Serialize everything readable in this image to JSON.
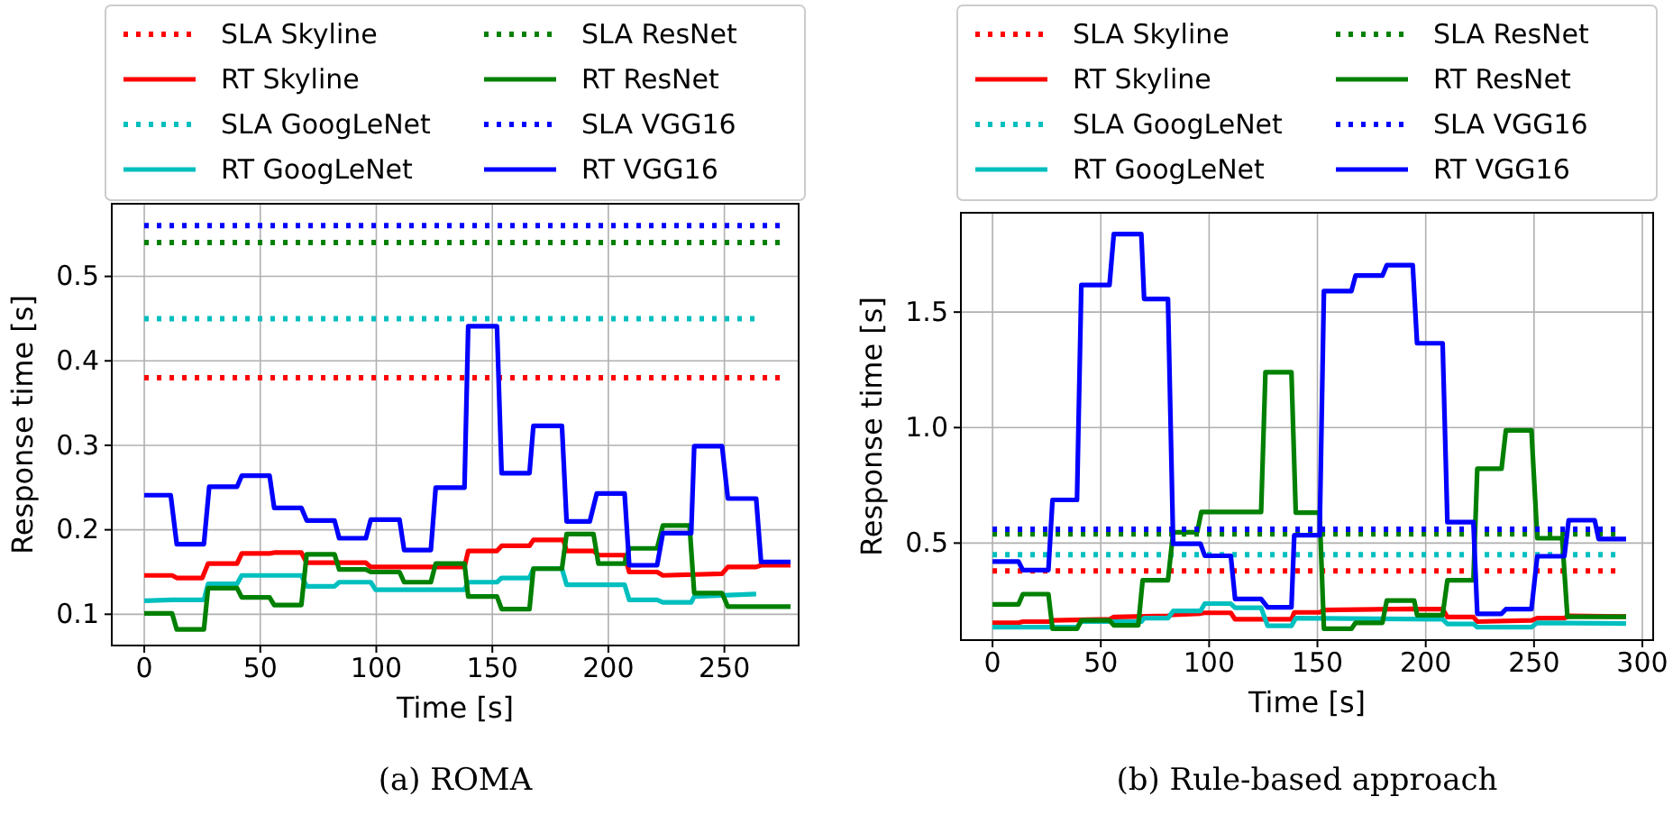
{
  "chart_data": [
    {
      "type": "line",
      "xlabel": "Time [s]",
      "ylabel": "Response time [s]",
      "annotations": [
        "(a) ROMA"
      ],
      "xlim": [
        -14,
        282
      ],
      "ylim": [
        0.063,
        0.586
      ],
      "xticks": [
        0,
        50,
        100,
        150,
        200,
        250
      ],
      "yticks": [
        0.1,
        0.2,
        0.3,
        0.4,
        0.5
      ],
      "grid": true,
      "legend": "top",
      "series": [
        {
          "name": "SLA Skyline",
          "color": "#ff0000",
          "line_style": "dotted",
          "x": [
            0,
            276
          ],
          "values": [
            0.38,
            0.38
          ]
        },
        {
          "name": "RT Skyline",
          "color": "#ff0000",
          "line_style": "solid",
          "x": [
            0,
            12,
            14,
            25,
            27.5,
            40,
            42,
            54,
            56,
            67.7,
            70,
            95.5,
            97.6,
            138,
            139.6,
            152,
            154,
            166,
            167.7,
            180.6,
            182,
            193.6,
            195.7,
            207,
            209,
            221,
            223.5,
            249,
            251.5,
            263.7,
            265.8,
            278.5
          ],
          "values": [
            0.146,
            0.146,
            0.143,
            0.143,
            0.16,
            0.16,
            0.172,
            0.172,
            0.173,
            0.173,
            0.161,
            0.161,
            0.156,
            0.156,
            0.175,
            0.175,
            0.181,
            0.181,
            0.188,
            0.188,
            0.175,
            0.175,
            0.17,
            0.17,
            0.15,
            0.15,
            0.146,
            0.148,
            0.156,
            0.156,
            0.158,
            0.158
          ]
        },
        {
          "name": "SLA GoogLeNet",
          "color": "#00bfbf",
          "line_style": "dotted",
          "x": [
            0,
            263
          ],
          "values": [
            0.45,
            0.45
          ]
        },
        {
          "name": "RT GoogLeNet",
          "color": "#00bfbf",
          "line_style": "solid",
          "x": [
            0,
            12,
            25.7,
            27.5,
            40,
            42,
            67.7,
            70,
            82,
            84,
            97.6,
            99.7,
            138,
            139.6,
            152,
            154,
            166,
            167.7,
            180,
            182,
            207,
            209,
            221,
            223.5,
            235.7,
            237,
            263.7
          ],
          "values": [
            0.116,
            0.117,
            0.117,
            0.136,
            0.136,
            0.146,
            0.146,
            0.133,
            0.133,
            0.138,
            0.138,
            0.129,
            0.129,
            0.138,
            0.138,
            0.143,
            0.143,
            0.154,
            0.154,
            0.135,
            0.135,
            0.117,
            0.117,
            0.114,
            0.114,
            0.121,
            0.124
          ]
        },
        {
          "name": "SLA ResNet",
          "color": "#008000",
          "line_style": "dotted",
          "x": [
            0,
            276
          ],
          "values": [
            0.54,
            0.54
          ]
        },
        {
          "name": "RT ResNet",
          "color": "#008000",
          "line_style": "solid",
          "x": [
            0,
            12,
            14,
            25.7,
            27.5,
            40,
            42,
            54,
            56,
            67.7,
            70,
            82,
            84,
            95.5,
            97.6,
            110,
            112,
            123.5,
            125.6,
            138,
            139.6,
            152,
            154,
            166,
            167.7,
            180,
            182,
            193.6,
            195.7,
            207,
            209,
            221,
            223.5,
            235,
            237,
            249,
            251.5,
            278.5
          ],
          "values": [
            0.101,
            0.101,
            0.082,
            0.082,
            0.131,
            0.131,
            0.12,
            0.12,
            0.111,
            0.111,
            0.171,
            0.171,
            0.153,
            0.153,
            0.15,
            0.15,
            0.138,
            0.138,
            0.16,
            0.16,
            0.121,
            0.121,
            0.106,
            0.106,
            0.154,
            0.154,
            0.195,
            0.195,
            0.16,
            0.16,
            0.178,
            0.178,
            0.205,
            0.205,
            0.125,
            0.125,
            0.109,
            0.109
          ]
        },
        {
          "name": "SLA VGG16",
          "color": "#0000ff",
          "line_style": "dotted",
          "x": [
            0,
            276
          ],
          "values": [
            0.56,
            0.56
          ]
        },
        {
          "name": "RT VGG16",
          "color": "#0000ff",
          "line_style": "solid",
          "x": [
            0,
            11.4,
            14,
            25.7,
            28,
            40,
            42,
            54,
            56,
            67.7,
            70,
            82,
            84,
            95.5,
            97.6,
            110,
            112,
            123.5,
            125.6,
            138,
            139.6,
            152,
            154,
            166,
            167.7,
            180,
            182,
            192,
            195,
            207,
            209,
            221,
            223.5,
            235.7,
            237,
            249,
            251.5,
            263.7,
            265.8,
            278.5
          ],
          "values": [
            0.241,
            0.241,
            0.183,
            0.183,
            0.251,
            0.251,
            0.264,
            0.264,
            0.226,
            0.226,
            0.211,
            0.211,
            0.19,
            0.19,
            0.212,
            0.212,
            0.176,
            0.176,
            0.25,
            0.25,
            0.441,
            0.441,
            0.267,
            0.267,
            0.323,
            0.323,
            0.21,
            0.21,
            0.243,
            0.243,
            0.158,
            0.158,
            0.196,
            0.196,
            0.299,
            0.299,
            0.237,
            0.237,
            0.162,
            0.162
          ]
        }
      ]
    },
    {
      "type": "line",
      "xlabel": "Time [s]",
      "ylabel": "Response time [s]",
      "annotations": [
        "(b) Rule-based approach"
      ],
      "xlim": [
        -14.6,
        305
      ],
      "ylim": [
        0.08,
        1.93
      ],
      "xticks": [
        0,
        50,
        100,
        150,
        200,
        250,
        300
      ],
      "yticks": [
        {
          "value": 0.5,
          "label": "0.5"
        },
        {
          "value": 1,
          "label": "1.0"
        },
        {
          "value": 1.5,
          "label": "1.5"
        }
      ],
      "grid": true,
      "legend": "top",
      "series": [
        {
          "name": "SLA Skyline",
          "color": "#ff0000",
          "line_style": "dotted",
          "x": [
            0,
            290
          ],
          "values": [
            0.38,
            0.38
          ]
        },
        {
          "name": "RT Skyline",
          "color": "#ff0000",
          "line_style": "solid",
          "x": [
            0,
            12,
            14,
            25.8,
            27.7,
            54,
            56,
            81,
            83.4,
            96,
            98,
            110,
            112,
            138,
            139.3,
            151,
            153,
            194,
            196,
            207.8,
            210,
            222,
            223.8,
            248.8,
            251.5,
            264,
            266,
            292.5
          ],
          "values": [
            0.155,
            0.155,
            0.16,
            0.16,
            0.165,
            0.17,
            0.18,
            0.185,
            0.19,
            0.195,
            0.198,
            0.198,
            0.17,
            0.17,
            0.2,
            0.2,
            0.21,
            0.215,
            0.214,
            0.214,
            0.18,
            0.18,
            0.16,
            0.165,
            0.175,
            0.175,
            0.185,
            0.182
          ]
        },
        {
          "name": "SLA GoogLeNet",
          "color": "#00bfbf",
          "line_style": "dotted",
          "x": [
            0,
            290
          ],
          "values": [
            0.45,
            0.45
          ]
        },
        {
          "name": "RT GoogLeNet",
          "color": "#00bfbf",
          "line_style": "solid",
          "x": [
            0,
            39,
            41,
            68.7,
            70,
            81,
            83.4,
            96,
            98,
            110,
            112,
            124,
            127,
            138,
            140,
            207.8,
            210,
            222,
            223.8,
            248.8,
            251.5,
            292.5
          ],
          "values": [
            0.136,
            0.136,
            0.16,
            0.16,
            0.175,
            0.175,
            0.206,
            0.206,
            0.238,
            0.238,
            0.22,
            0.22,
            0.142,
            0.142,
            0.175,
            0.17,
            0.15,
            0.15,
            0.136,
            0.136,
            0.155,
            0.152
          ]
        },
        {
          "name": "SLA ResNet",
          "color": "#008000",
          "line_style": "dotted",
          "x": [
            0,
            290
          ],
          "values": [
            0.54,
            0.54
          ]
        },
        {
          "name": "RT ResNet",
          "color": "#008000",
          "line_style": "solid",
          "x": [
            0,
            12,
            14,
            25.8,
            27.7,
            39,
            41,
            54,
            56,
            67.3,
            69.3,
            81,
            83.4,
            94.5,
            96.4,
            124,
            126,
            138,
            140,
            151,
            153,
            165.7,
            167.6,
            180,
            182,
            194.7,
            196,
            207.8,
            210,
            222,
            223.8,
            235,
            237,
            248.8,
            251.5,
            263,
            265.4,
            292.5
          ],
          "values": [
            0.235,
            0.235,
            0.279,
            0.279,
            0.129,
            0.129,
            0.165,
            0.165,
            0.144,
            0.144,
            0.339,
            0.339,
            0.547,
            0.547,
            0.635,
            0.635,
            1.24,
            1.24,
            0.632,
            0.632,
            0.129,
            0.129,
            0.155,
            0.155,
            0.251,
            0.251,
            0.188,
            0.188,
            0.339,
            0.339,
            0.822,
            0.822,
            0.988,
            0.988,
            0.521,
            0.521,
            0.181,
            0.181
          ]
        },
        {
          "name": "SLA VGG16",
          "color": "#0000ff",
          "line_style": "dotted",
          "x": [
            0,
            290
          ],
          "values": [
            0.56,
            0.56
          ]
        },
        {
          "name": "RT VGG16",
          "color": "#0000ff",
          "line_style": "solid",
          "x": [
            0,
            12,
            14,
            25.8,
            27.7,
            39,
            41,
            54,
            56,
            68.7,
            70,
            81,
            83.4,
            96,
            98,
            110,
            112,
            124,
            127,
            138,
            139.3,
            151,
            153,
            165.7,
            167.6,
            180,
            182,
            194,
            196,
            207.8,
            210,
            222,
            223.8,
            235,
            237,
            248.8,
            251.5,
            264,
            266,
            278,
            279.8,
            292.5
          ],
          "values": [
            0.42,
            0.42,
            0.383,
            0.383,
            0.687,
            0.687,
            1.617,
            1.617,
            1.838,
            1.838,
            1.557,
            1.557,
            0.497,
            0.497,
            0.445,
            0.445,
            0.258,
            0.258,
            0.222,
            0.222,
            0.534,
            0.534,
            1.591,
            1.591,
            1.658,
            1.658,
            1.703,
            1.703,
            1.365,
            1.365,
            0.591,
            0.591,
            0.194,
            0.194,
            0.214,
            0.214,
            0.443,
            0.443,
            0.599,
            0.599,
            0.518,
            0.518
          ]
        }
      ]
    }
  ]
}
